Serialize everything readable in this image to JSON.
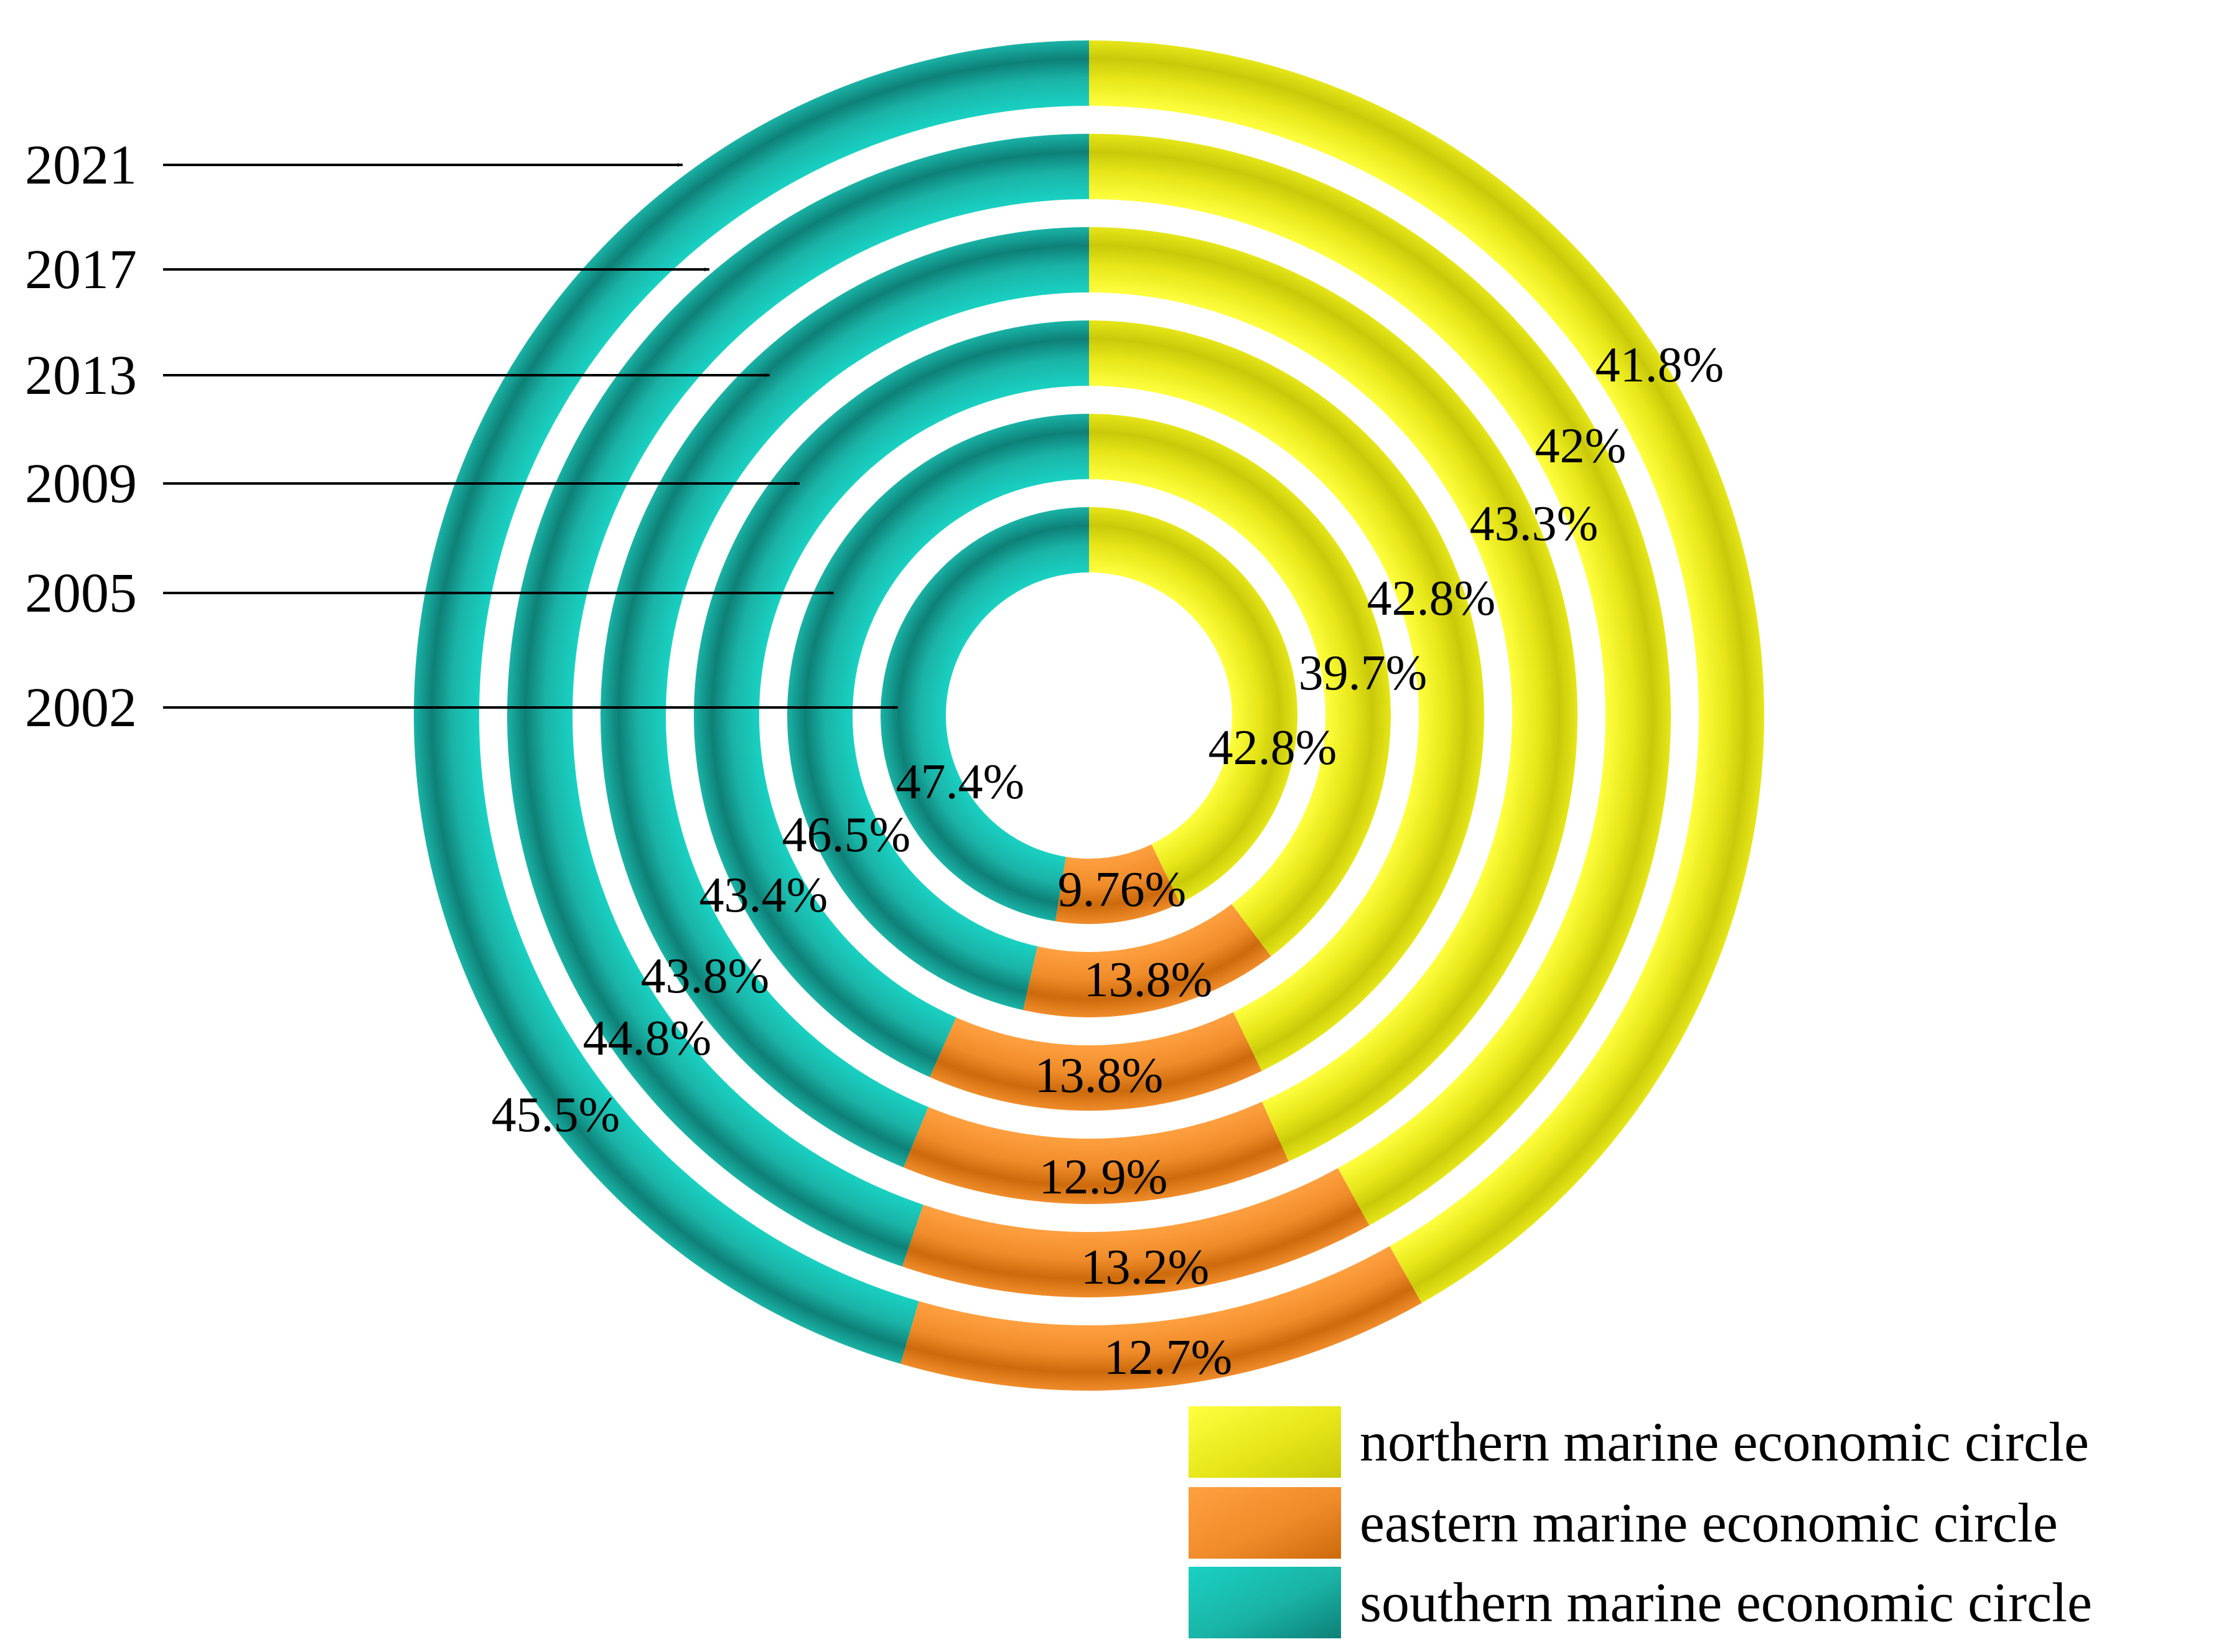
{
  "chart_data": {
    "type": "donut",
    "title": "",
    "rings_inner_to_outer": [
      "2002",
      "2005",
      "2009",
      "2013",
      "2017",
      "2021"
    ],
    "series": [
      {
        "name": "northern marine economic circle",
        "values": [
          42.8,
          39.7,
          42.8,
          43.3,
          42,
          41.8
        ],
        "labels": [
          "42.8%",
          "39.7%",
          "42.8%",
          "43.3%",
          "42%",
          "41.8%"
        ],
        "color": "#e6e619",
        "color_light": "#ffff40",
        "color_dark": "#c9c90a"
      },
      {
        "name": "eastern marine economic circle",
        "values": [
          9.76,
          13.8,
          13.8,
          12.9,
          13.2,
          12.7
        ],
        "labels": [
          "9.76%",
          "13.8%",
          "13.8%",
          "12.9%",
          "13.2%",
          "12.7%"
        ],
        "color": "#f08c2a",
        "color_light": "#ffa040",
        "color_dark": "#cc6a0c"
      },
      {
        "name": "southern marine economic circle",
        "values": [
          47.4,
          46.5,
          43.4,
          43.8,
          44.8,
          45.5
        ],
        "labels": [
          "47.4%",
          "46.5%",
          "43.4%",
          "43.8%",
          "44.8%",
          "45.5%"
        ],
        "color": "#1ab3a6",
        "color_light": "#19d1c2",
        "color_dark": "#0e8077"
      }
    ],
    "legend_position": "bottom-right"
  }
}
